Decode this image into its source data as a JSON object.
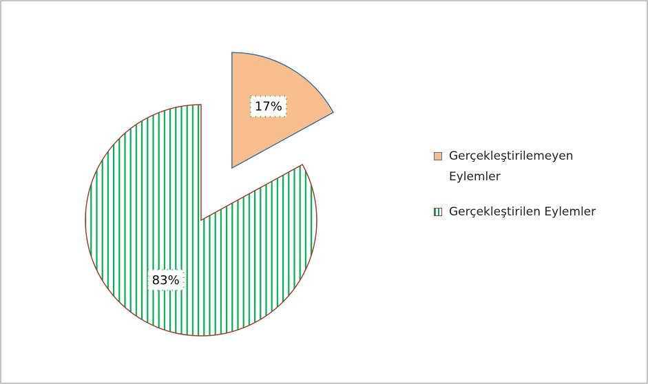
{
  "chart_data": {
    "type": "pie",
    "categories": [
      "Gerçekleştirilemeyen Eylemler",
      "Gerçekleştirilen Eylemler"
    ],
    "values": [
      17,
      83
    ],
    "value_labels": [
      "17%",
      "83%"
    ],
    "colors": [
      "#f8be8e",
      "#00b050"
    ],
    "legend": "right"
  }
}
